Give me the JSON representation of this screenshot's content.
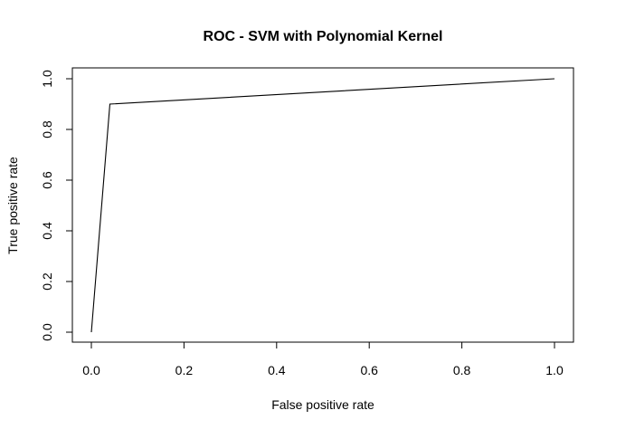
{
  "chart_data": {
    "type": "line",
    "title": "ROC - SVM with Polynomial Kernel",
    "xlabel": "False positive rate",
    "ylabel": "True positive rate",
    "xlim": [
      0,
      1
    ],
    "ylim": [
      0,
      1
    ],
    "x_ticks": [
      "0.0",
      "0.2",
      "0.4",
      "0.6",
      "0.8",
      "1.0"
    ],
    "y_ticks": [
      "0.0",
      "0.2",
      "0.4",
      "0.6",
      "0.8",
      "1.0"
    ],
    "grid": false,
    "legend": "none",
    "series": [
      {
        "x": [
          0.0,
          0.04,
          1.0
        ],
        "y": [
          0.0,
          0.9,
          1.0
        ],
        "color": "#000000"
      }
    ]
  }
}
